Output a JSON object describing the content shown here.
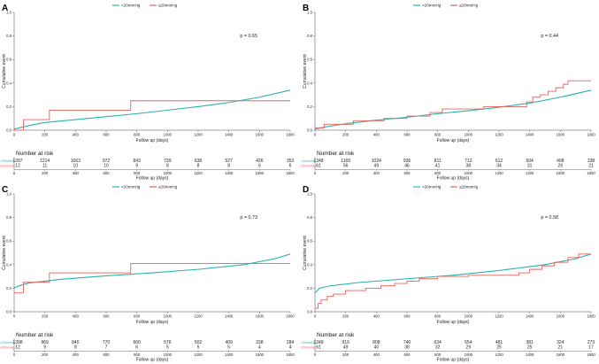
{
  "colors": {
    "low": "#29b3b0",
    "high": "#e8605a",
    "axis": "#444444"
  },
  "legend": {
    "low": "<20mmHg",
    "high": "≥20mmHg"
  },
  "risk_title": "Number at risk",
  "chart_data": [
    {
      "panel": "A",
      "type": "line",
      "ylabel": "Cumulative event",
      "xlabel": "Follow up (days)",
      "xlim": [
        0,
        1800
      ],
      "ylim": [
        0,
        1.0
      ],
      "xticks": [
        "0",
        "200",
        "400",
        "600",
        "800",
        "1000",
        "1200",
        "1400",
        "1600",
        "1800"
      ],
      "yticks": [
        "0.0",
        "0.2",
        "0.4",
        "0.6",
        "0.8",
        "1.0"
      ],
      "p_value": "p = 0.65",
      "series": [
        {
          "name": "<20mmHg",
          "step": false,
          "points": [
            [
              0,
              0.01
            ],
            [
              100,
              0.04
            ],
            [
              200,
              0.065
            ],
            [
              400,
              0.09
            ],
            [
              600,
              0.115
            ],
            [
              800,
              0.14
            ],
            [
              1000,
              0.17
            ],
            [
              1200,
              0.2
            ],
            [
              1400,
              0.235
            ],
            [
              1600,
              0.28
            ],
            [
              1800,
              0.34
            ]
          ]
        },
        {
          "name": "≥20mmHg",
          "step": true,
          "points": [
            [
              0,
              0.0
            ],
            [
              60,
              0.09
            ],
            [
              230,
              0.17
            ],
            [
              760,
              0.25
            ],
            [
              1800,
              0.25
            ]
          ]
        }
      ],
      "risk": {
        "low_label": "<20mmHg",
        "high_label": "≥20mmHg",
        "low": [
          "1397",
          "1214",
          "1063",
          "972",
          "843",
          "739",
          "638",
          "527",
          "426",
          "353"
        ],
        "high": [
          "12",
          "11",
          "10",
          "10",
          "9",
          "8",
          "8",
          "8",
          "6",
          "6"
        ]
      }
    },
    {
      "panel": "B",
      "type": "line",
      "ylabel": "Cumulative event",
      "xlabel": "Follow up (days)",
      "xlim": [
        0,
        1800
      ],
      "ylim": [
        0,
        1.0
      ],
      "xticks": [
        "0",
        "200",
        "400",
        "600",
        "800",
        "1000",
        "1200",
        "1400",
        "1600",
        "1800"
      ],
      "yticks": [
        "0.0",
        "0.2",
        "0.4",
        "0.6",
        "0.8",
        "1.0"
      ],
      "p_value": "p = 0.44",
      "series": [
        {
          "name": "<20mmHg",
          "step": false,
          "points": [
            [
              0,
              0.01
            ],
            [
              100,
              0.035
            ],
            [
              200,
              0.055
            ],
            [
              400,
              0.085
            ],
            [
              600,
              0.11
            ],
            [
              800,
              0.14
            ],
            [
              1000,
              0.165
            ],
            [
              1200,
              0.195
            ],
            [
              1400,
              0.23
            ],
            [
              1600,
              0.28
            ],
            [
              1800,
              0.34
            ]
          ]
        },
        {
          "name": "≥20mmHg",
          "step": true,
          "points": [
            [
              0,
              0.02
            ],
            [
              60,
              0.05
            ],
            [
              250,
              0.08
            ],
            [
              450,
              0.1
            ],
            [
              600,
              0.12
            ],
            [
              750,
              0.15
            ],
            [
              830,
              0.18
            ],
            [
              1100,
              0.2
            ],
            [
              1380,
              0.24
            ],
            [
              1420,
              0.28
            ],
            [
              1470,
              0.3
            ],
            [
              1520,
              0.33
            ],
            [
              1570,
              0.36
            ],
            [
              1620,
              0.39
            ],
            [
              1650,
              0.42
            ],
            [
              1800,
              0.42
            ]
          ]
        }
      ],
      "risk": {
        "low_label": "<20mmHg",
        "high_label": "≥20mmHg",
        "low": [
          "1348",
          "1169",
          "1024",
          "936",
          "811",
          "712",
          "612",
          "504",
          "408",
          "338"
        ],
        "high": [
          "61",
          "56",
          "49",
          "46",
          "41",
          "38",
          "34",
          "31",
          "26",
          "21"
        ]
      }
    },
    {
      "panel": "C",
      "type": "line",
      "ylabel": "Cumulative event",
      "xlabel": "Follow up (days)",
      "xlim": [
        0,
        1800
      ],
      "ylim": [
        0,
        1.0
      ],
      "xticks": [
        "0",
        "200",
        "400",
        "600",
        "800",
        "1000",
        "1200",
        "1400",
        "1600",
        "1800"
      ],
      "yticks": [
        "0.0",
        "0.2",
        "0.4",
        "0.6",
        "0.8",
        "1.0"
      ],
      "p_value": "p = 0.73",
      "series": [
        {
          "name": "<20mmHg",
          "step": false,
          "points": [
            [
              0,
              0.2
            ],
            [
              30,
              0.22
            ],
            [
              100,
              0.245
            ],
            [
              300,
              0.275
            ],
            [
              600,
              0.305
            ],
            [
              900,
              0.33
            ],
            [
              1200,
              0.36
            ],
            [
              1500,
              0.4
            ],
            [
              1700,
              0.45
            ],
            [
              1800,
              0.49
            ]
          ]
        },
        {
          "name": "≥20mmHg",
          "step": true,
          "points": [
            [
              0,
              0.16
            ],
            [
              60,
              0.25
            ],
            [
              230,
              0.33
            ],
            [
              760,
              0.41
            ],
            [
              1800,
              0.41
            ]
          ]
        }
      ],
      "risk": {
        "low_label": "<20mmHg",
        "high_label": "≥20mmHg",
        "low": [
          "1398",
          "969",
          "840",
          "770",
          "660",
          "576",
          "502",
          "409",
          "338",
          "284"
        ],
        "high": [
          "12",
          "9",
          "8",
          "7",
          "6",
          "5",
          "5",
          "5",
          "4",
          "4"
        ]
      }
    },
    {
      "panel": "D",
      "type": "line",
      "ylabel": "Cumulative event",
      "xlabel": "Follow up (days)",
      "xlim": [
        0,
        1800
      ],
      "ylim": [
        0,
        1.0
      ],
      "xticks": [
        "0",
        "200",
        "400",
        "600",
        "800",
        "1000",
        "1200",
        "1400",
        "1600",
        "1800"
      ],
      "yticks": [
        "0.0",
        "0.2",
        "0.4",
        "0.6",
        "0.8",
        "1.0"
      ],
      "p_value": "p = 0.58",
      "series": [
        {
          "name": "<20mmHg",
          "step": false,
          "points": [
            [
              0,
              0.16
            ],
            [
              30,
              0.2
            ],
            [
              100,
              0.22
            ],
            [
              300,
              0.25
            ],
            [
              600,
              0.28
            ],
            [
              900,
              0.31
            ],
            [
              1200,
              0.35
            ],
            [
              1500,
              0.4
            ],
            [
              1700,
              0.45
            ],
            [
              1800,
              0.49
            ]
          ]
        },
        {
          "name": "≥20mmHg",
          "step": true,
          "points": [
            [
              0,
              0.03
            ],
            [
              20,
              0.07
            ],
            [
              40,
              0.1
            ],
            [
              80,
              0.13
            ],
            [
              120,
              0.15
            ],
            [
              200,
              0.18
            ],
            [
              330,
              0.2
            ],
            [
              430,
              0.22
            ],
            [
              520,
              0.24
            ],
            [
              600,
              0.26
            ],
            [
              680,
              0.28
            ],
            [
              800,
              0.3
            ],
            [
              1000,
              0.31
            ],
            [
              1330,
              0.33
            ],
            [
              1400,
              0.36
            ],
            [
              1480,
              0.39
            ],
            [
              1560,
              0.42
            ],
            [
              1650,
              0.46
            ],
            [
              1720,
              0.49
            ],
            [
              1800,
              0.49
            ]
          ]
        }
      ],
      "risk": {
        "low_label": "<20mmHg",
        "high_label": "≥20mmHg",
        "low": [
          "1349",
          "919",
          "808",
          "740",
          "634",
          "554",
          "481",
          "381",
          "324",
          "273"
        ],
        "high": [
          "61",
          "49",
          "40",
          "38",
          "32",
          "29",
          "25",
          "25",
          "21",
          "17"
        ]
      }
    }
  ]
}
